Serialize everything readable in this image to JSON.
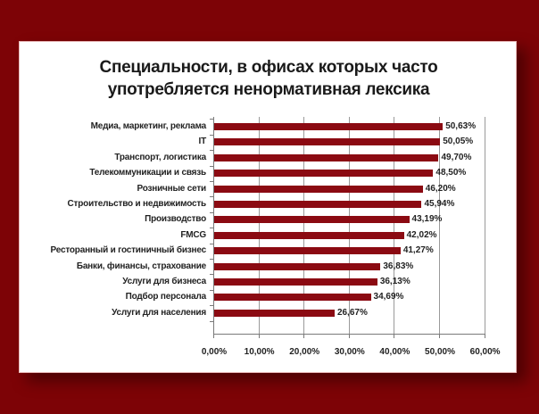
{
  "chart_data": {
    "type": "bar",
    "orientation": "horizontal",
    "title": "Специальности, в офисах которых часто употребляется ненормативная лексика",
    "title_lines": [
      "Специальности, в офисах которых часто",
      "употребляется ненормативная лексика"
    ],
    "xlabel": "",
    "ylabel": "",
    "categories": [
      "Медиа, маркетинг, реклама",
      "IT",
      "Транспорт, логистика",
      "Телекоммуникации и связь",
      "Розничные сети",
      "Строительство и недвижимость",
      "Производство",
      "FMCG",
      "Ресторанный и гостиничный бизнес",
      "Банки, финансы, страхование",
      "Услуги для бизнеса",
      "Подбор персонала",
      "Услуги для населения"
    ],
    "values": [
      50.63,
      50.05,
      49.7,
      48.5,
      46.2,
      45.94,
      43.19,
      42.02,
      41.27,
      36.83,
      36.13,
      34.69,
      26.67
    ],
    "value_labels": [
      "50,63%",
      "50,05%",
      "49,70%",
      "48,50%",
      "46,20%",
      "45,94%",
      "43,19%",
      "42,02%",
      "41,27%",
      "36,83%",
      "36,13%",
      "34,69%",
      "26,67%"
    ],
    "xlim": [
      0,
      60
    ],
    "x_ticks": [
      0,
      10,
      20,
      30,
      40,
      50,
      60
    ],
    "x_tick_labels": [
      "0,00%",
      "10,00%",
      "20,00%",
      "30,00%",
      "40,00%",
      "50,00%",
      "60,00%"
    ],
    "grid": "vertical",
    "legend": "none",
    "bar_color": "#8b0a12"
  },
  "frame": {
    "background_color": "#7d0306",
    "card_color": "#ffffff"
  }
}
